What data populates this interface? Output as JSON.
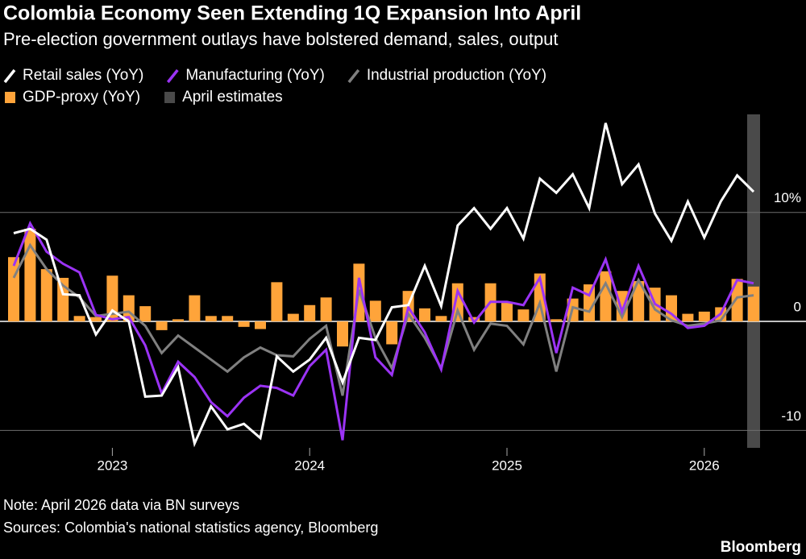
{
  "chart_data": {
    "type": "combo",
    "title": "Colombia Economy Seen Extending 1Q Expansion Into April",
    "subtitle": "Pre-election government outlays have bolstered demand, sales, output",
    "note": "Note: April 2026 data via BN surveys",
    "source": "Sources: Colombia's national statistics agency, Bloomberg",
    "brand": "Bloomberg",
    "categories": [
      null,
      null,
      null,
      null,
      null,
      null,
      "2023",
      null,
      null,
      null,
      null,
      null,
      null,
      null,
      null,
      null,
      null,
      null,
      "2024",
      null,
      null,
      null,
      null,
      null,
      null,
      null,
      null,
      null,
      null,
      null,
      "2025",
      null,
      null,
      null,
      null,
      null,
      null,
      null,
      null,
      null,
      null,
      null,
      "2026",
      null,
      null,
      null
    ],
    "series": [
      {
        "name": "Retail sales (YoY)",
        "type": "line",
        "color": "#ffffff",
        "values": [
          8.1,
          8.5,
          7.5,
          2.5,
          2.4,
          -1.2,
          1.0,
          0,
          -6.9,
          -6.8,
          -4.2,
          -11.2,
          -7.8,
          -9.9,
          -9.4,
          -10.7,
          -3.2,
          -4.6,
          -3.5,
          -1.5,
          -5.6,
          -1.5,
          -1.7,
          1.3,
          1.5,
          5.1,
          1.4,
          8.8,
          10.4,
          8.5,
          10.4,
          7.6,
          13.1,
          11.8,
          13.5,
          10.4,
          18.2,
          12.6,
          14.4,
          9.9,
          7.4,
          11.0,
          7.7,
          11.0,
          13.4,
          11.9
        ]
      },
      {
        "name": "Manufacturing (YoY)",
        "type": "line",
        "color": "#9b33f5",
        "values": [
          5.1,
          9.0,
          6.4,
          5.3,
          4.5,
          0.6,
          0.2,
          0.4,
          -2.2,
          -6.6,
          -3.7,
          -5.1,
          -7.4,
          -8.7,
          -7.0,
          -5.9,
          -6.1,
          -6.8,
          -4.1,
          -2.6,
          -10.9,
          4.0,
          -3.3,
          -4.9,
          1.3,
          -1.0,
          -4.4,
          2.8,
          -0.1,
          1.8,
          1.8,
          1.5,
          4.0,
          -2.9,
          3.1,
          2.4,
          5.7,
          0.9,
          5.1,
          1.6,
          0.7,
          -0.6,
          -0.4,
          0.7,
          3.8,
          3.5
        ]
      },
      {
        "name": "Industrial production (YoY)",
        "type": "line",
        "color": "#808080",
        "values": [
          4.0,
          7.0,
          4.8,
          3.3,
          2.2,
          0.5,
          0.7,
          0.9,
          -0.4,
          -2.9,
          -1.3,
          -2.4,
          -3.5,
          -4.6,
          -3.3,
          -2.4,
          -3.1,
          -3.2,
          -1.6,
          -0.4,
          -6.8,
          2.9,
          -1.5,
          -4.3,
          0.7,
          -1.5,
          -4.3,
          1.0,
          -2.6,
          -0.2,
          -0.4,
          -2.1,
          1.7,
          -4.6,
          1.3,
          0.9,
          3.5,
          0.4,
          3.8,
          1.1,
          0.1,
          -0.4,
          -0.2,
          0.1,
          2.2,
          2.4
        ]
      },
      {
        "name": "GDP-proxy (YoY)",
        "type": "bar",
        "color": "#ffa43a",
        "values": [
          5.9,
          8.5,
          4.8,
          4.0,
          0.5,
          0.4,
          4.2,
          2.4,
          1.4,
          -0.8,
          0.2,
          2.4,
          0.5,
          0.5,
          -0.5,
          -0.7,
          3.6,
          0.7,
          1.5,
          2.2,
          -2.3,
          5.3,
          1.9,
          -2.1,
          2.8,
          1.2,
          0.5,
          3.5,
          0.4,
          3.5,
          1.8,
          1.1,
          4.4,
          0.2,
          2.1,
          3.4,
          4.6,
          2.8,
          3.7,
          3.1,
          2.4,
          0.7,
          0.9,
          1.3,
          3.9,
          3.2
        ]
      }
    ],
    "estimate": {
      "name": "April estimates",
      "color": "#4a4a4a"
    },
    "ylim": [
      -11.6,
      19
    ],
    "yticks": [
      -10,
      0,
      {
        "value": 10,
        "label": "10%"
      }
    ],
    "grid": true
  }
}
